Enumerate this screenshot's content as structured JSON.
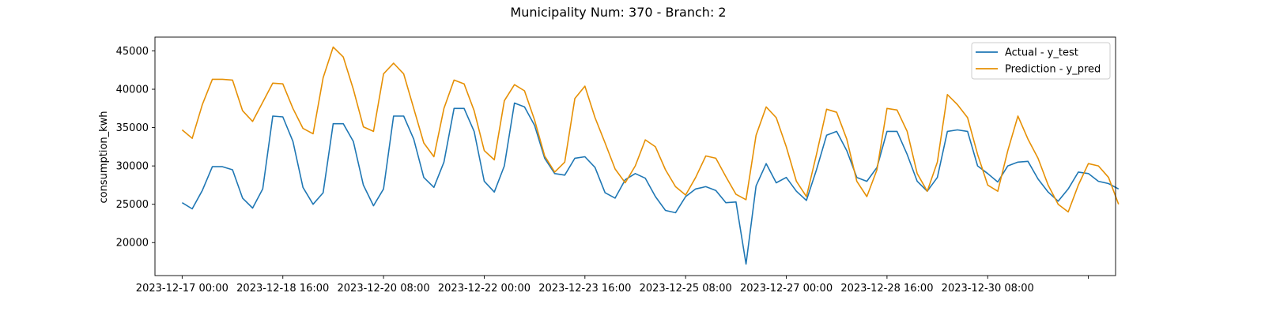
{
  "chart_data": {
    "type": "line",
    "title": "Municipality Num: 370 - Branch: 2",
    "xlabel": "",
    "ylabel": "consumption_kwh",
    "x_start": "2023-12-17 00:00",
    "x_step_hours": 4,
    "xlim": [
      "2023-12-16 13:12",
      "2024-01-01 10:48"
    ],
    "ylim": [
      15700,
      46800
    ],
    "x_ticks": [
      "2023-12-17 00:00",
      "2023-12-18 16:00",
      "2023-12-20 08:00",
      "2023-12-22 00:00",
      "2023-12-23 16:00",
      "2023-12-25 08:00",
      "2023-12-27 00:00",
      "2023-12-28 16:00",
      "2023-12-30 08:00",
      "2024-01-01 00:00"
    ],
    "x_tick_labels": [
      "2023-12-17 00:00",
      "2023-12-18 16:00",
      "2023-12-20 08:00",
      "2023-12-22 00:00",
      "2023-12-23 16:00",
      "2023-12-25 08:00",
      "2023-12-27 00:00",
      "2023-12-28 16:00",
      "2023-12-30 08:00",
      ""
    ],
    "y_ticks": [
      20000,
      25000,
      30000,
      35000,
      40000,
      45000
    ],
    "y_tick_labels": [
      "20000",
      "25000",
      "30000",
      "35000",
      "40000",
      "45000"
    ],
    "grid": false,
    "legend_position": "top-right",
    "series": [
      {
        "name": "Actual - y_test",
        "color": "#1f77b4",
        "values": [
          25200,
          24400,
          26800,
          29900,
          29900,
          29500,
          25800,
          24500,
          27000,
          36500,
          36400,
          33200,
          27200,
          25000,
          26500,
          35500,
          35500,
          33200,
          27500,
          24800,
          27000,
          36500,
          36500,
          33500,
          28500,
          27200,
          30500,
          37500,
          37500,
          34500,
          28000,
          26600,
          30000,
          38200,
          37700,
          35300,
          31000,
          29000,
          28800,
          31000,
          31200,
          29800,
          26500,
          25800,
          28200,
          29000,
          28400,
          26000,
          24200,
          23900,
          26000,
          27000,
          27300,
          26800,
          25200,
          25300,
          17200,
          27400,
          30300,
          27800,
          28500,
          26700,
          25500,
          29500,
          34000,
          34500,
          32000,
          28500,
          28000,
          29800,
          34500,
          34500,
          31500,
          28000,
          26700,
          28500,
          34500,
          34700,
          34500,
          30000,
          29000,
          27900,
          30000,
          30500,
          30600,
          28300,
          26600,
          25400,
          27000,
          29200,
          29000,
          28000,
          27700,
          27000
        ]
      },
      {
        "name": "Prediction - y_pred",
        "color": "#e69005",
        "values": [
          34700,
          33600,
          38000,
          41300,
          41300,
          41200,
          37200,
          35800,
          38300,
          40800,
          40700,
          37500,
          34900,
          34200,
          41500,
          45500,
          44200,
          40000,
          35100,
          34500,
          42000,
          43400,
          42000,
          37500,
          33000,
          31200,
          37500,
          41200,
          40700,
          37200,
          32000,
          30800,
          38500,
          40600,
          39800,
          36000,
          31300,
          29200,
          30500,
          38800,
          40400,
          36300,
          33000,
          29600,
          27800,
          30000,
          33400,
          32500,
          29500,
          27300,
          26200,
          28500,
          31300,
          31000,
          28600,
          26300,
          25600,
          34000,
          37700,
          36300,
          32500,
          28000,
          26000,
          31500,
          37400,
          37000,
          33500,
          28000,
          26000,
          29500,
          37500,
          37300,
          34500,
          29000,
          26700,
          30500,
          39300,
          38000,
          36300,
          31500,
          27500,
          26700,
          32000,
          36500,
          33500,
          31000,
          27500,
          25000,
          24000,
          27500,
          30300,
          30000,
          28500,
          25000
        ]
      }
    ]
  }
}
